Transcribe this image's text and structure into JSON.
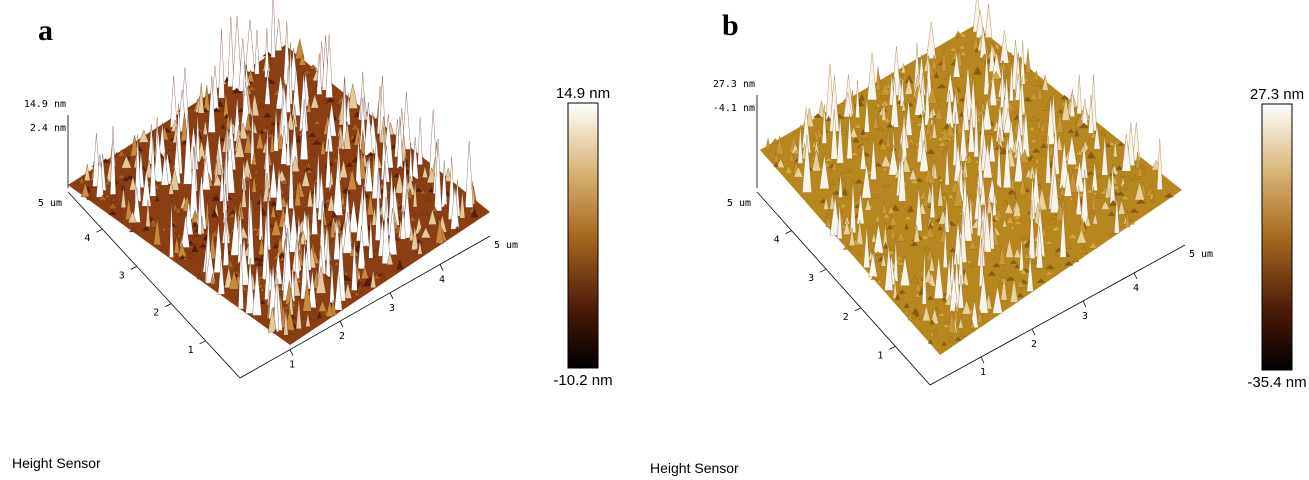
{
  "panels": [
    {
      "label": "a",
      "z_axis": {
        "top": "14.9 nm",
        "mid": "2.4 nm"
      },
      "y_axis": {
        "end": "5 um",
        "ticks": [
          "1",
          "2",
          "3",
          "4"
        ]
      },
      "x_axis": {
        "ticks": [
          "1",
          "2",
          "3",
          "4"
        ],
        "end": "5 um"
      },
      "colorbar": {
        "max": "14.9 nm",
        "min": "-10.2 nm"
      },
      "caption": "Height Sensor"
    },
    {
      "label": "b",
      "z_axis": {
        "top": "27.3 nm",
        "mid": "-4.1 nm"
      },
      "y_axis": {
        "end": "5 um",
        "ticks": [
          "1",
          "2",
          "3",
          "4"
        ]
      },
      "x_axis": {
        "ticks": [
          "1",
          "2",
          "3",
          "4"
        ],
        "end": "5 um"
      },
      "colorbar": {
        "max": "27.3 nm",
        "min": "-35.4 nm"
      },
      "caption": "Height Sensor"
    }
  ]
}
